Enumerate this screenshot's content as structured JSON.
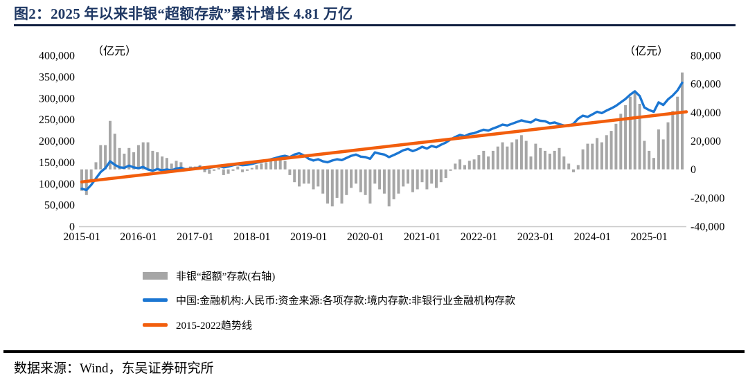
{
  "header": {
    "title": "图2：2025 年以来非银“超额存款”累计增长 4.81 万亿"
  },
  "footer": {
    "source": "数据来源：Wind，东吴证券研究所"
  },
  "colors": {
    "title": "#1F3864",
    "top_divider": "#101F40",
    "bottom_divider": "#000000",
    "bar": "#A6A6A6",
    "deposit_line": "#1B76D2",
    "trend_line": "#F25E0D",
    "axis_line": "#C8C8C8",
    "axis_text": "#000000"
  },
  "chart_data": {
    "type": "bar",
    "subtype": "combo-bar-line-dual-axis",
    "start_month": "2015-01",
    "end_month": "2025-08",
    "x_ticks": [
      "2015-01",
      "2016-01",
      "2017-01",
      "2018-01",
      "2019-01",
      "2020-01",
      "2021-01",
      "2022-01",
      "2023-01",
      "2024-01",
      "2025-01"
    ],
    "left_axis": {
      "unit": "（亿元）",
      "min": 0,
      "max": 400000,
      "step": 50000
    },
    "right_axis": {
      "unit": "（亿元）",
      "min": -40000,
      "max": 80000,
      "step": 20000
    },
    "grid": false,
    "legend_position": "bottom-left",
    "series": [
      {
        "name": "非银“超额”存款(右轴)",
        "type": "bar",
        "axis": "right",
        "color": "#A6A6A6",
        "values": [
          -15000,
          -18000,
          -8000,
          5000,
          17000,
          17000,
          34000,
          25000,
          15000,
          11000,
          15000,
          12000,
          17000,
          19000,
          19000,
          13000,
          12000,
          9000,
          8000,
          4000,
          6000,
          5000,
          1000,
          2000,
          2000,
          3000,
          -2000,
          -3000,
          -1000,
          1000,
          -4000,
          -3000,
          -1000,
          2000,
          -2000,
          -1000,
          1000,
          3000,
          4000,
          5000,
          7000,
          8000,
          7000,
          6000,
          -4000,
          -9000,
          -12000,
          -10000,
          -10000,
          -14000,
          -12000,
          -17000,
          -24000,
          -26000,
          -20000,
          -24000,
          -18000,
          -13000,
          -10000,
          -16000,
          -18000,
          -24000,
          -10000,
          -14000,
          -17000,
          -26000,
          -21000,
          -17000,
          -12000,
          -10000,
          -16000,
          -14000,
          -9000,
          -14000,
          -10000,
          -13000,
          -9000,
          -6000,
          -1000,
          4000,
          7000,
          3000,
          6000,
          7000,
          10000,
          13000,
          9000,
          13000,
          16000,
          19000,
          16000,
          19000,
          21000,
          24000,
          20000,
          9000,
          18000,
          15000,
          13000,
          11000,
          13000,
          15000,
          9000,
          4000,
          -2000,
          3000,
          14000,
          18000,
          18000,
          22000,
          19000,
          24000,
          27000,
          32000,
          39000,
          45000,
          51000,
          55000,
          46000,
          20000,
          13000,
          8000,
          28000,
          21000,
          33000,
          41000,
          51000,
          68000
        ]
      },
      {
        "name": "中国:金融机构:人民币:资金来源:各项存款:境内存款:非银行业金融机构存款",
        "type": "line",
        "axis": "left",
        "color": "#1B76D2",
        "values": [
          88000,
          85000,
          97000,
          112000,
          127000,
          136000,
          152000,
          144000,
          138000,
          137000,
          142000,
          138000,
          136000,
          139000,
          133000,
          130000,
          134000,
          131000,
          133000,
          131000,
          135000,
          137000,
          133000,
          135000,
          136000,
          138000,
          135000,
          137000,
          139000,
          141000,
          138000,
          140000,
          143000,
          145000,
          143000,
          144000,
          146000,
          149000,
          151000,
          154000,
          157000,
          160000,
          163000,
          165000,
          162000,
          168000,
          171000,
          166000,
          158000,
          154000,
          157000,
          152000,
          150000,
          154000,
          157000,
          155000,
          160000,
          165000,
          168000,
          163000,
          162000,
          158000,
          173000,
          170000,
          168000,
          162000,
          167000,
          172000,
          178000,
          181000,
          176000,
          180000,
          186000,
          182000,
          188000,
          185000,
          191000,
          196000,
          203000,
          209000,
          214000,
          211000,
          216000,
          218000,
          222000,
          226000,
          224000,
          229000,
          233000,
          238000,
          236000,
          240000,
          244000,
          248000,
          245000,
          243000,
          250000,
          247000,
          246000,
          241000,
          243000,
          239000,
          236000,
          235000,
          240000,
          252000,
          259000,
          256000,
          262000,
          268000,
          265000,
          271000,
          276000,
          282000,
          290000,
          298000,
          308000,
          316000,
          305000,
          278000,
          272000,
          268000,
          290000,
          284000,
          297000,
          306000,
          318000,
          336000
        ]
      },
      {
        "name": "2015-2022趋势线",
        "type": "trendline",
        "axis": "left",
        "color": "#F25E0D",
        "points": [
          {
            "month_index": 0,
            "value": 104000
          },
          {
            "month_index": 127,
            "value": 268000
          }
        ]
      }
    ]
  }
}
